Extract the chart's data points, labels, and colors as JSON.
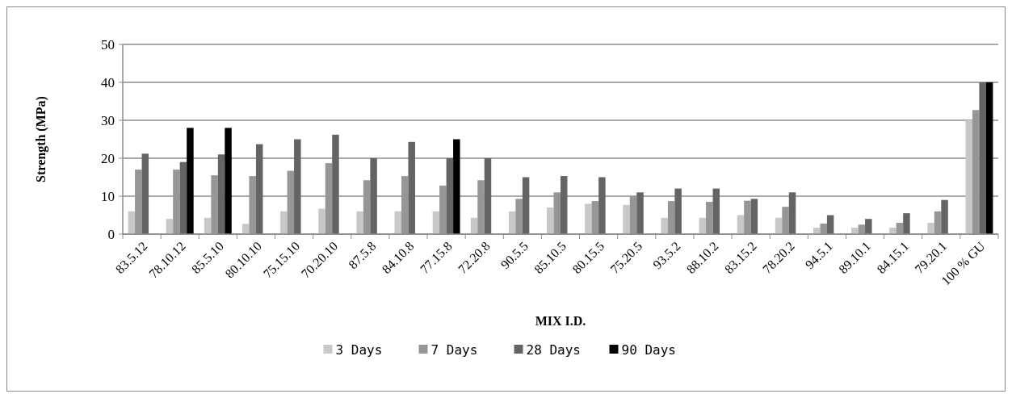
{
  "chart_data": {
    "type": "bar",
    "xlabel": "MIX I.D.",
    "ylabel": "Strength (MPa)",
    "categories": [
      "83.5.12",
      "78.10.12",
      "85.5.10",
      "80.10.10",
      "75.15.10",
      "70.20.10",
      "87.5.8",
      "84.10.8",
      "77.15.8",
      "72.20.8",
      "90.5.5",
      "85.10.5",
      "80.15.5",
      "75.20.5",
      "93.5.2",
      "88.10.2",
      "83.15.2",
      "78.20.2",
      "94.5.1",
      "89.10.1",
      "84.15.1",
      "79.20.1",
      "100 % GU"
    ],
    "series": [
      {
        "name": "3 Days",
        "color": "#c8c8c8",
        "values": [
          6,
          4,
          4.3,
          2.7,
          6,
          6.7,
          6,
          6,
          6,
          4.3,
          6,
          7,
          8,
          7.7,
          4.3,
          4.3,
          5,
          4.3,
          1.7,
          1.7,
          1.7,
          3,
          30
        ]
      },
      {
        "name": "7 Days",
        "color": "#969696",
        "values": [
          17,
          17,
          15.5,
          15.3,
          16.7,
          18.7,
          14.2,
          15.3,
          12.8,
          14.2,
          9.3,
          11,
          8.7,
          10,
          8.7,
          8.5,
          8.8,
          7.2,
          2.8,
          2.5,
          3,
          6,
          32.7
        ]
      },
      {
        "name": "28 Days",
        "color": "#646464",
        "values": [
          21.2,
          19,
          21,
          23.7,
          25,
          26.2,
          20,
          24.3,
          20,
          20,
          15,
          15.3,
          15,
          11,
          12,
          12,
          9.3,
          11,
          5,
          4,
          5.5,
          9,
          40
        ]
      },
      {
        "name": "90 Days",
        "color": "#000000",
        "values": [
          null,
          28,
          28,
          null,
          null,
          null,
          null,
          null,
          25,
          null,
          null,
          null,
          null,
          null,
          null,
          null,
          null,
          null,
          null,
          null,
          null,
          null,
          40
        ]
      }
    ],
    "ylim": [
      0,
      50
    ],
    "yticks": [
      0,
      10,
      20,
      30,
      40,
      50
    ],
    "grid": "y",
    "legend": "bottom"
  }
}
